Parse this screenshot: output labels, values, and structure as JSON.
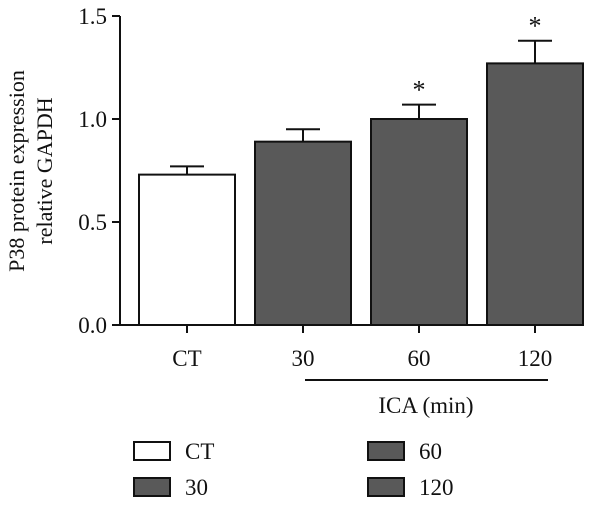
{
  "chart_data": {
    "type": "bar",
    "categories": [
      "CT",
      "30",
      "60",
      "120"
    ],
    "values": [
      0.73,
      0.89,
      1.0,
      1.27
    ],
    "errors": [
      0.04,
      0.06,
      0.07,
      0.11
    ],
    "significance": [
      "",
      "",
      "*",
      "*"
    ],
    "bar_colors": [
      "#ffffff",
      "#595959",
      "#595959",
      "#595959"
    ],
    "ylabel_line1": "P38 protein expression",
    "ylabel_line2": "relative GAPDH",
    "xgroup_label": "ICA (min)",
    "ylim": [
      0,
      1.5
    ],
    "yticks": [
      "0.0",
      "0.5",
      "1.0",
      "1.5"
    ],
    "ytick_values": [
      0,
      0.5,
      1.0,
      1.5
    ],
    "legend": [
      {
        "label": "CT",
        "color": "#ffffff"
      },
      {
        "label": "60",
        "color": "#595959"
      },
      {
        "label": "30",
        "color": "#595959"
      },
      {
        "label": "120",
        "color": "#595959"
      }
    ],
    "grid": false,
    "legend_placement": "bottom"
  }
}
